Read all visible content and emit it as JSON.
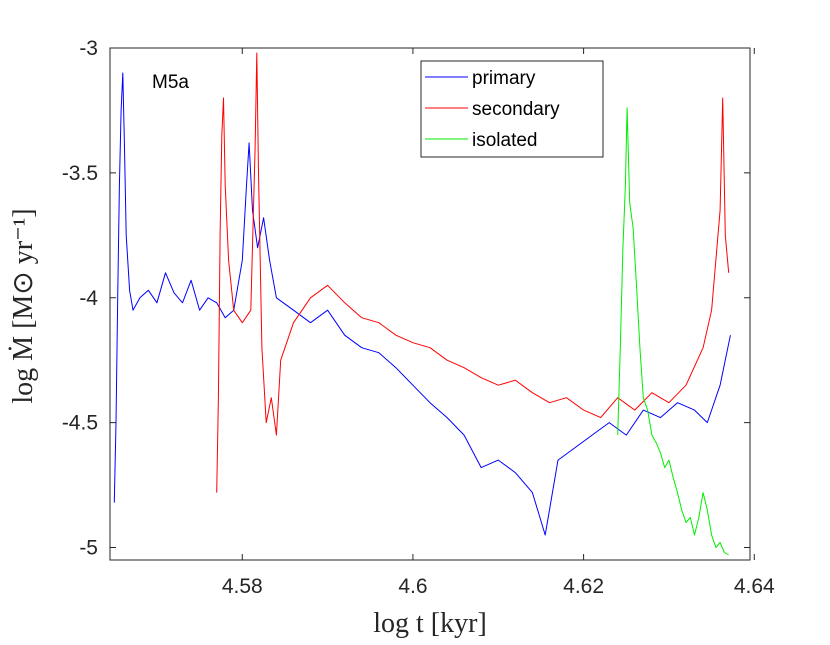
{
  "chart_data": {
    "type": "line",
    "title": "",
    "annotation": "M5a",
    "xlabel": "log t [kyr]",
    "ylabel": "log Ṁ [M⊙ yr⁻¹]",
    "xlim": [
      4.5645,
      4.6395
    ],
    "ylim": [
      -5.05,
      -3.0
    ],
    "xticks": [
      4.58,
      4.6,
      4.62,
      4.64
    ],
    "xtick_labels": [
      "4.58",
      "4.6",
      "4.62",
      "4.64"
    ],
    "yticks": [
      -3,
      -3.5,
      -4,
      -4.5,
      -5
    ],
    "ytick_labels": [
      "-3",
      "-3.5",
      "-4",
      "-4.5",
      "-5"
    ],
    "grid": false,
    "legend_position": "top-right",
    "series": [
      {
        "name": "primary",
        "color": "#0000ff",
        "points": [
          [
            4.565,
            -4.82
          ],
          [
            4.5652,
            -4.5
          ],
          [
            4.5654,
            -4.0
          ],
          [
            4.5656,
            -3.55
          ],
          [
            4.5658,
            -3.25
          ],
          [
            4.566,
            -3.1
          ],
          [
            4.5662,
            -3.4
          ],
          [
            4.5664,
            -3.75
          ],
          [
            4.5668,
            -3.97
          ],
          [
            4.5672,
            -4.05
          ],
          [
            4.568,
            -4.0
          ],
          [
            4.569,
            -3.97
          ],
          [
            4.57,
            -4.02
          ],
          [
            4.571,
            -3.9
          ],
          [
            4.572,
            -3.98
          ],
          [
            4.573,
            -4.02
          ],
          [
            4.574,
            -3.93
          ],
          [
            4.575,
            -4.05
          ],
          [
            4.576,
            -4.0
          ],
          [
            4.577,
            -4.02
          ],
          [
            4.578,
            -4.08
          ],
          [
            4.579,
            -4.05
          ],
          [
            4.58,
            -3.85
          ],
          [
            4.5805,
            -3.55
          ],
          [
            4.5808,
            -3.38
          ],
          [
            4.5812,
            -3.65
          ],
          [
            4.5818,
            -3.8
          ],
          [
            4.5825,
            -3.68
          ],
          [
            4.5832,
            -3.85
          ],
          [
            4.584,
            -4.0
          ],
          [
            4.586,
            -4.05
          ],
          [
            4.588,
            -4.1
          ],
          [
            4.59,
            -4.05
          ],
          [
            4.592,
            -4.15
          ],
          [
            4.594,
            -4.2
          ],
          [
            4.596,
            -4.22
          ],
          [
            4.598,
            -4.28
          ],
          [
            4.6,
            -4.35
          ],
          [
            4.602,
            -4.42
          ],
          [
            4.604,
            -4.48
          ],
          [
            4.606,
            -4.55
          ],
          [
            4.608,
            -4.68
          ],
          [
            4.61,
            -4.65
          ],
          [
            4.612,
            -4.7
          ],
          [
            4.614,
            -4.78
          ],
          [
            4.6155,
            -4.95
          ],
          [
            4.617,
            -4.65
          ],
          [
            4.619,
            -4.6
          ],
          [
            4.621,
            -4.55
          ],
          [
            4.623,
            -4.5
          ],
          [
            4.625,
            -4.55
          ],
          [
            4.627,
            -4.45
          ],
          [
            4.629,
            -4.48
          ],
          [
            4.631,
            -4.42
          ],
          [
            4.633,
            -4.45
          ],
          [
            4.6345,
            -4.5
          ],
          [
            4.636,
            -4.35
          ],
          [
            4.6372,
            -4.15
          ]
        ]
      },
      {
        "name": "secondary",
        "color": "#ff0000",
        "points": [
          [
            4.577,
            -4.78
          ],
          [
            4.5772,
            -4.4
          ],
          [
            4.5774,
            -3.75
          ],
          [
            4.5776,
            -3.35
          ],
          [
            4.5778,
            -3.2
          ],
          [
            4.578,
            -3.55
          ],
          [
            4.5784,
            -3.85
          ],
          [
            4.579,
            -4.05
          ],
          [
            4.58,
            -4.1
          ],
          [
            4.581,
            -4.05
          ],
          [
            4.5815,
            -3.4
          ],
          [
            4.5817,
            -3.02
          ],
          [
            4.5819,
            -3.5
          ],
          [
            4.5823,
            -4.2
          ],
          [
            4.5828,
            -4.5
          ],
          [
            4.5834,
            -4.4
          ],
          [
            4.584,
            -4.55
          ],
          [
            4.5845,
            -4.25
          ],
          [
            4.586,
            -4.1
          ],
          [
            4.588,
            -4.0
          ],
          [
            4.59,
            -3.95
          ],
          [
            4.592,
            -4.02
          ],
          [
            4.594,
            -4.08
          ],
          [
            4.596,
            -4.1
          ],
          [
            4.598,
            -4.15
          ],
          [
            4.6,
            -4.18
          ],
          [
            4.602,
            -4.2
          ],
          [
            4.604,
            -4.25
          ],
          [
            4.606,
            -4.28
          ],
          [
            4.608,
            -4.32
          ],
          [
            4.61,
            -4.35
          ],
          [
            4.612,
            -4.33
          ],
          [
            4.614,
            -4.38
          ],
          [
            4.616,
            -4.42
          ],
          [
            4.618,
            -4.4
          ],
          [
            4.62,
            -4.45
          ],
          [
            4.622,
            -4.48
          ],
          [
            4.624,
            -4.4
          ],
          [
            4.626,
            -4.45
          ],
          [
            4.628,
            -4.38
          ],
          [
            4.63,
            -4.42
          ],
          [
            4.632,
            -4.35
          ],
          [
            4.634,
            -4.2
          ],
          [
            4.635,
            -4.05
          ],
          [
            4.636,
            -3.65
          ],
          [
            4.6363,
            -3.2
          ],
          [
            4.6366,
            -3.75
          ],
          [
            4.637,
            -3.9
          ]
        ]
      },
      {
        "name": "isolated",
        "color": "#00ee00",
        "points": [
          [
            4.624,
            -4.55
          ],
          [
            4.6243,
            -4.2
          ],
          [
            4.6246,
            -3.8
          ],
          [
            4.6249,
            -3.55
          ],
          [
            4.6251,
            -3.24
          ],
          [
            4.6254,
            -3.62
          ],
          [
            4.6258,
            -3.72
          ],
          [
            4.6262,
            -3.95
          ],
          [
            4.6266,
            -4.2
          ],
          [
            4.627,
            -4.4
          ],
          [
            4.6275,
            -4.45
          ],
          [
            4.628,
            -4.55
          ],
          [
            4.6285,
            -4.58
          ],
          [
            4.629,
            -4.62
          ],
          [
            4.6295,
            -4.68
          ],
          [
            4.63,
            -4.65
          ],
          [
            4.6305,
            -4.72
          ],
          [
            4.631,
            -4.78
          ],
          [
            4.6315,
            -4.85
          ],
          [
            4.632,
            -4.9
          ],
          [
            4.6325,
            -4.88
          ],
          [
            4.633,
            -4.95
          ],
          [
            4.6335,
            -4.88
          ],
          [
            4.634,
            -4.78
          ],
          [
            4.6345,
            -4.85
          ],
          [
            4.635,
            -4.95
          ],
          [
            4.6355,
            -5.0
          ],
          [
            4.636,
            -4.98
          ],
          [
            4.6365,
            -5.02
          ],
          [
            4.637,
            -5.03
          ]
        ]
      }
    ]
  }
}
